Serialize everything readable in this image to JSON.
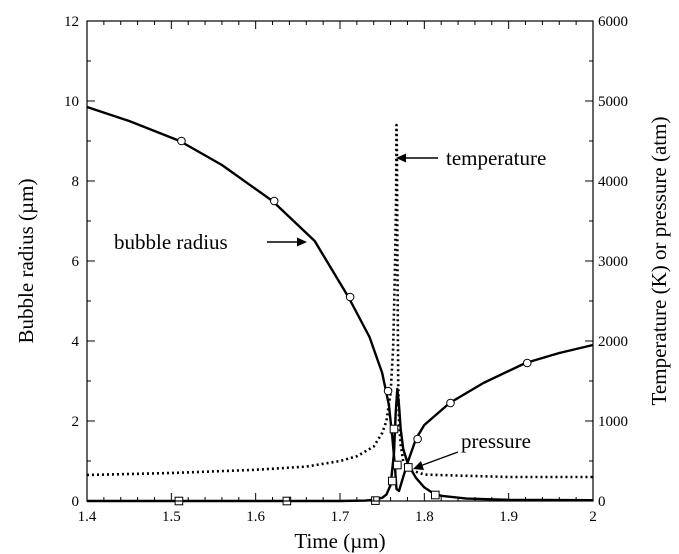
{
  "chart_data": {
    "type": "line",
    "xlabel": "Time (µm)",
    "ylabel_left": "Bubble radius (µm)",
    "ylabel_right": "Temperature (K) or pressure (atm)",
    "xlim": [
      1.4,
      2.0
    ],
    "ylim_left": [
      0,
      12
    ],
    "ylim_right": [
      0,
      6000
    ],
    "x_ticks": [
      "1.4",
      "1.5",
      "1.6",
      "1.7",
      "1.8",
      "1.9",
      "2"
    ],
    "y_left_ticks": [
      "0",
      "2",
      "4",
      "6",
      "8",
      "10",
      "12"
    ],
    "y_right_ticks": [
      "0",
      "1000",
      "2000",
      "3000",
      "4000",
      "5000",
      "6000"
    ],
    "grid": false,
    "series": [
      {
        "name": "bubble radius",
        "axis": "left",
        "style": "solid",
        "marker": "circle",
        "x": [
          1.4,
          1.45,
          1.51,
          1.56,
          1.62,
          1.67,
          1.71,
          1.735,
          1.75,
          1.758,
          1.762,
          1.765,
          1.767,
          1.77,
          1.775,
          1.78,
          1.785,
          1.79,
          1.8,
          1.83,
          1.87,
          1.92,
          1.96,
          2.0
        ],
        "values": [
          9.85,
          9.5,
          9.0,
          8.4,
          7.5,
          6.5,
          5.1,
          4.1,
          3.2,
          2.4,
          1.6,
          0.9,
          0.3,
          0.25,
          0.6,
          0.95,
          1.25,
          1.55,
          1.9,
          2.45,
          2.95,
          3.45,
          3.7,
          3.9
        ],
        "marker_x": [
          1.512,
          1.622,
          1.712,
          1.757,
          1.768,
          1.792,
          1.831,
          1.922
        ],
        "marker_values": [
          9.0,
          7.5,
          5.1,
          2.75,
          0.9,
          1.55,
          2.45,
          3.45
        ]
      },
      {
        "name": "temperature",
        "axis": "right",
        "style": "dotted",
        "marker": "none",
        "x": [
          1.4,
          1.5,
          1.6,
          1.66,
          1.7,
          1.72,
          1.74,
          1.75,
          1.755,
          1.76,
          1.763,
          1.765,
          1.7665,
          1.767,
          1.7675,
          1.768,
          1.7685,
          1.769,
          1.77,
          1.772,
          1.775,
          1.78,
          1.8,
          1.9,
          2.0
        ],
        "values": [
          325,
          350,
          390,
          430,
          500,
          560,
          680,
          850,
          1000,
          1350,
          1900,
          2800,
          3800,
          4700,
          4400,
          3300,
          2300,
          1500,
          1000,
          700,
          500,
          400,
          330,
          300,
          300
        ]
      },
      {
        "name": "pressure",
        "axis": "right",
        "style": "solid",
        "marker": "square",
        "x": [
          1.4,
          1.5,
          1.6,
          1.7,
          1.73,
          1.74,
          1.75,
          1.755,
          1.76,
          1.764,
          1.766,
          1.768,
          1.77,
          1.772,
          1.775,
          1.78,
          1.785,
          1.79,
          1.8,
          1.81,
          1.82,
          1.85,
          1.9,
          2.0
        ],
        "values": [
          0,
          0,
          0,
          0,
          5,
          15,
          40,
          80,
          200,
          600,
          1100,
          1400,
          1200,
          900,
          650,
          480,
          380,
          290,
          170,
          100,
          65,
          30,
          15,
          10
        ],
        "marker_x": [
          1.509,
          1.637,
          1.742,
          1.762,
          1.764,
          1.768,
          1.781,
          1.813
        ],
        "marker_values": [
          0,
          0,
          5,
          250,
          900,
          450,
          420,
          75
        ]
      }
    ],
    "annotations": [
      {
        "text": "temperature",
        "points_to": "temperature"
      },
      {
        "text": "bubble radius",
        "points_to": "bubble radius"
      },
      {
        "text": "pressure",
        "points_to": "pressure"
      }
    ]
  }
}
